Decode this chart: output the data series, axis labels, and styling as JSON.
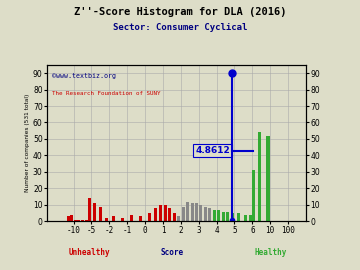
{
  "title": "Z''-Score Histogram for DLA (2016)",
  "subtitle": "Sector: Consumer Cyclical",
  "watermark1": "©www.textbiz.org",
  "watermark2": "The Research Foundation of SUNY",
  "ylabel_left": "Number of companies (531 total)",
  "xlabel": "Score",
  "xlabel_unhealthy": "Unhealthy",
  "xlabel_healthy": "Healthy",
  "dla_score": 4.8612,
  "dla_label": "4.8612",
  "background_color": "#ddddc8",
  "red_color": "#cc0000",
  "gray_color": "#888888",
  "green_color": "#33aa33",
  "blue_color": "#0000cc",
  "title_color": "#000000",
  "subtitle_color": "#000080",
  "watermark1_color": "#000080",
  "watermark2_color": "#cc0000",
  "grid_color": "#aaaaaa",
  "score_ticks": [
    -10,
    -5,
    -2,
    -1,
    0,
    1,
    2,
    3,
    4,
    5,
    6,
    10,
    100
  ],
  "disp_ticks": [
    0,
    1,
    2,
    3,
    4,
    5,
    6,
    7,
    8,
    9,
    10,
    11,
    12
  ],
  "bars": [
    [
      -11.5,
      3,
      "red"
    ],
    [
      -10.5,
      4,
      "red"
    ],
    [
      -9.5,
      1,
      "red"
    ],
    [
      -8.5,
      1,
      "red"
    ],
    [
      -7.5,
      1,
      "red"
    ],
    [
      -6.5,
      1,
      "red"
    ],
    [
      -5.5,
      14,
      "red"
    ],
    [
      -4.5,
      11,
      "red"
    ],
    [
      -3.5,
      9,
      "red"
    ],
    [
      -2.5,
      2,
      "red"
    ],
    [
      -1.75,
      3,
      "red"
    ],
    [
      -1.25,
      2,
      "red"
    ],
    [
      -0.75,
      4,
      "red"
    ],
    [
      -0.25,
      3,
      "red"
    ],
    [
      0.25,
      5,
      "red"
    ],
    [
      0.6,
      8,
      "red"
    ],
    [
      0.875,
      10,
      "red"
    ],
    [
      1.125,
      10,
      "red"
    ],
    [
      1.375,
      8,
      "red"
    ],
    [
      1.625,
      5,
      "red"
    ],
    [
      1.875,
      3,
      "gray"
    ],
    [
      2.125,
      9,
      "gray"
    ],
    [
      2.375,
      12,
      "gray"
    ],
    [
      2.625,
      11,
      "gray"
    ],
    [
      2.875,
      11,
      "gray"
    ],
    [
      3.125,
      10,
      "gray"
    ],
    [
      3.375,
      9,
      "gray"
    ],
    [
      3.625,
      8,
      "gray"
    ],
    [
      3.875,
      7,
      "green"
    ],
    [
      4.125,
      7,
      "green"
    ],
    [
      4.375,
      6,
      "green"
    ],
    [
      4.625,
      6,
      "green"
    ],
    [
      4.875,
      5,
      "green"
    ],
    [
      5.25,
      5,
      "green"
    ],
    [
      5.625,
      4,
      "green"
    ],
    [
      5.875,
      4,
      "green"
    ],
    [
      6.25,
      31,
      "green"
    ],
    [
      7.5,
      54,
      "green"
    ],
    [
      9.5,
      52,
      "green"
    ]
  ],
  "dla_vertical_top": 90,
  "dla_horizontal_y": 43,
  "ylim": [
    0,
    95
  ],
  "xlim": [
    -1.5,
    13.0
  ]
}
